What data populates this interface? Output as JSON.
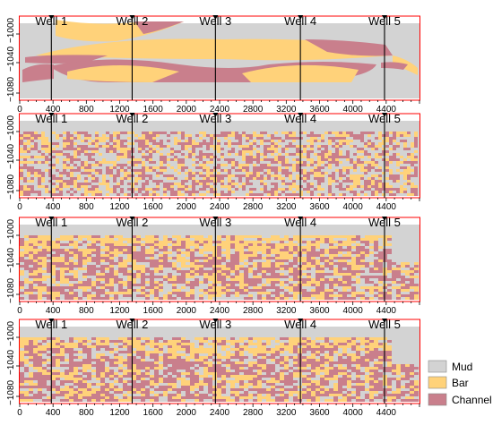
{
  "chart_data": {
    "type": "heatmap",
    "panel_count": 4,
    "x_ticks": [
      "0",
      "400",
      "800",
      "1200",
      "1600",
      "2000",
      "2400",
      "2800",
      "3200",
      "3600",
      "4000",
      "4400"
    ],
    "x_range": [
      0,
      4800
    ],
    "y_ticks": [
      "1000",
      "1040",
      "1080"
    ],
    "y_tick_signs": [
      "−",
      "−",
      "−"
    ],
    "y_range": [
      -985,
      -1090
    ],
    "wells": [
      {
        "name": "Well 1",
        "x": 380
      },
      {
        "name": "Well 2",
        "x": 1350
      },
      {
        "name": "Well 3",
        "x": 2350
      },
      {
        "name": "Well 4",
        "x": 3370
      },
      {
        "name": "Well 5",
        "x": 4380
      }
    ],
    "legend": [
      {
        "label": "Mud",
        "color": "#d3d3d3"
      },
      {
        "label": "Bar",
        "color": "#ffd27a"
      },
      {
        "label": "Channel",
        "color": "#c97f8c"
      }
    ]
  }
}
